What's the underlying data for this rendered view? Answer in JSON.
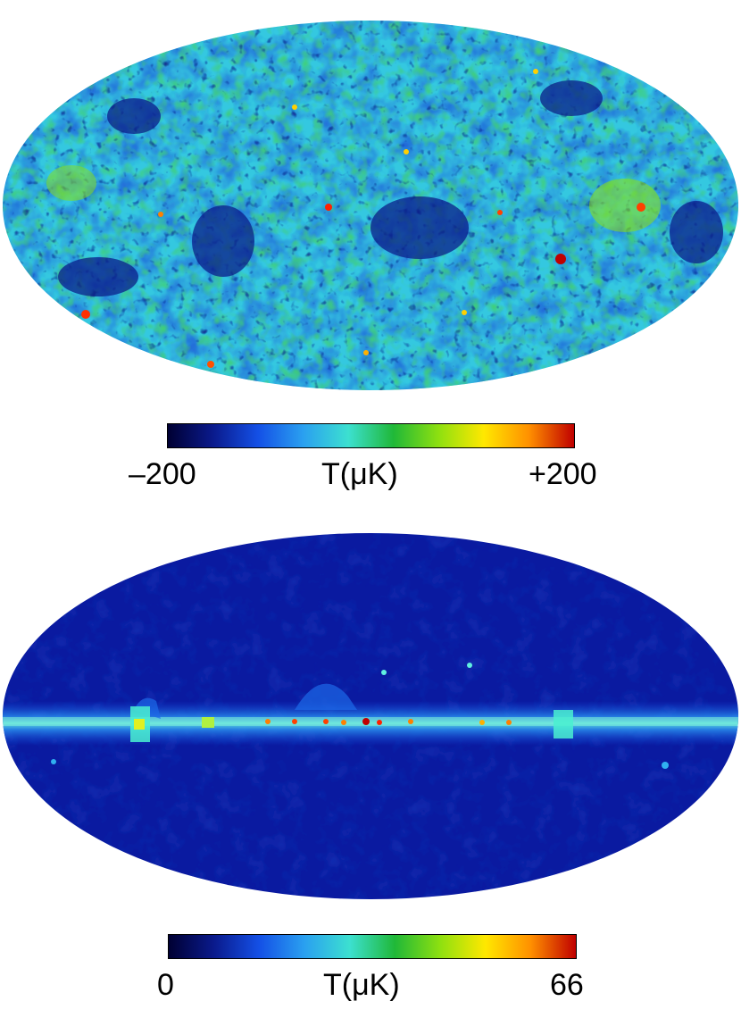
{
  "top_map": {
    "colorbar": {
      "min_label": "–200",
      "mid_label": "T(μK)",
      "max_label": "+200",
      "stops": [
        "#000033",
        "#0a1a8c",
        "#1450e6",
        "#2aa0f0",
        "#3ce0d0",
        "#20b838",
        "#8ee010",
        "#ffe800",
        "#ff9000",
        "#c00000"
      ]
    }
  },
  "bottom_map": {
    "colorbar": {
      "min_label": "0",
      "mid_label": "T(μK)",
      "max_label": "66",
      "stops": [
        "#000033",
        "#0a1a8c",
        "#1450e6",
        "#2aa0f0",
        "#3ce0d0",
        "#20b838",
        "#8ee010",
        "#ffe800",
        "#ff9000",
        "#c00000"
      ]
    }
  }
}
